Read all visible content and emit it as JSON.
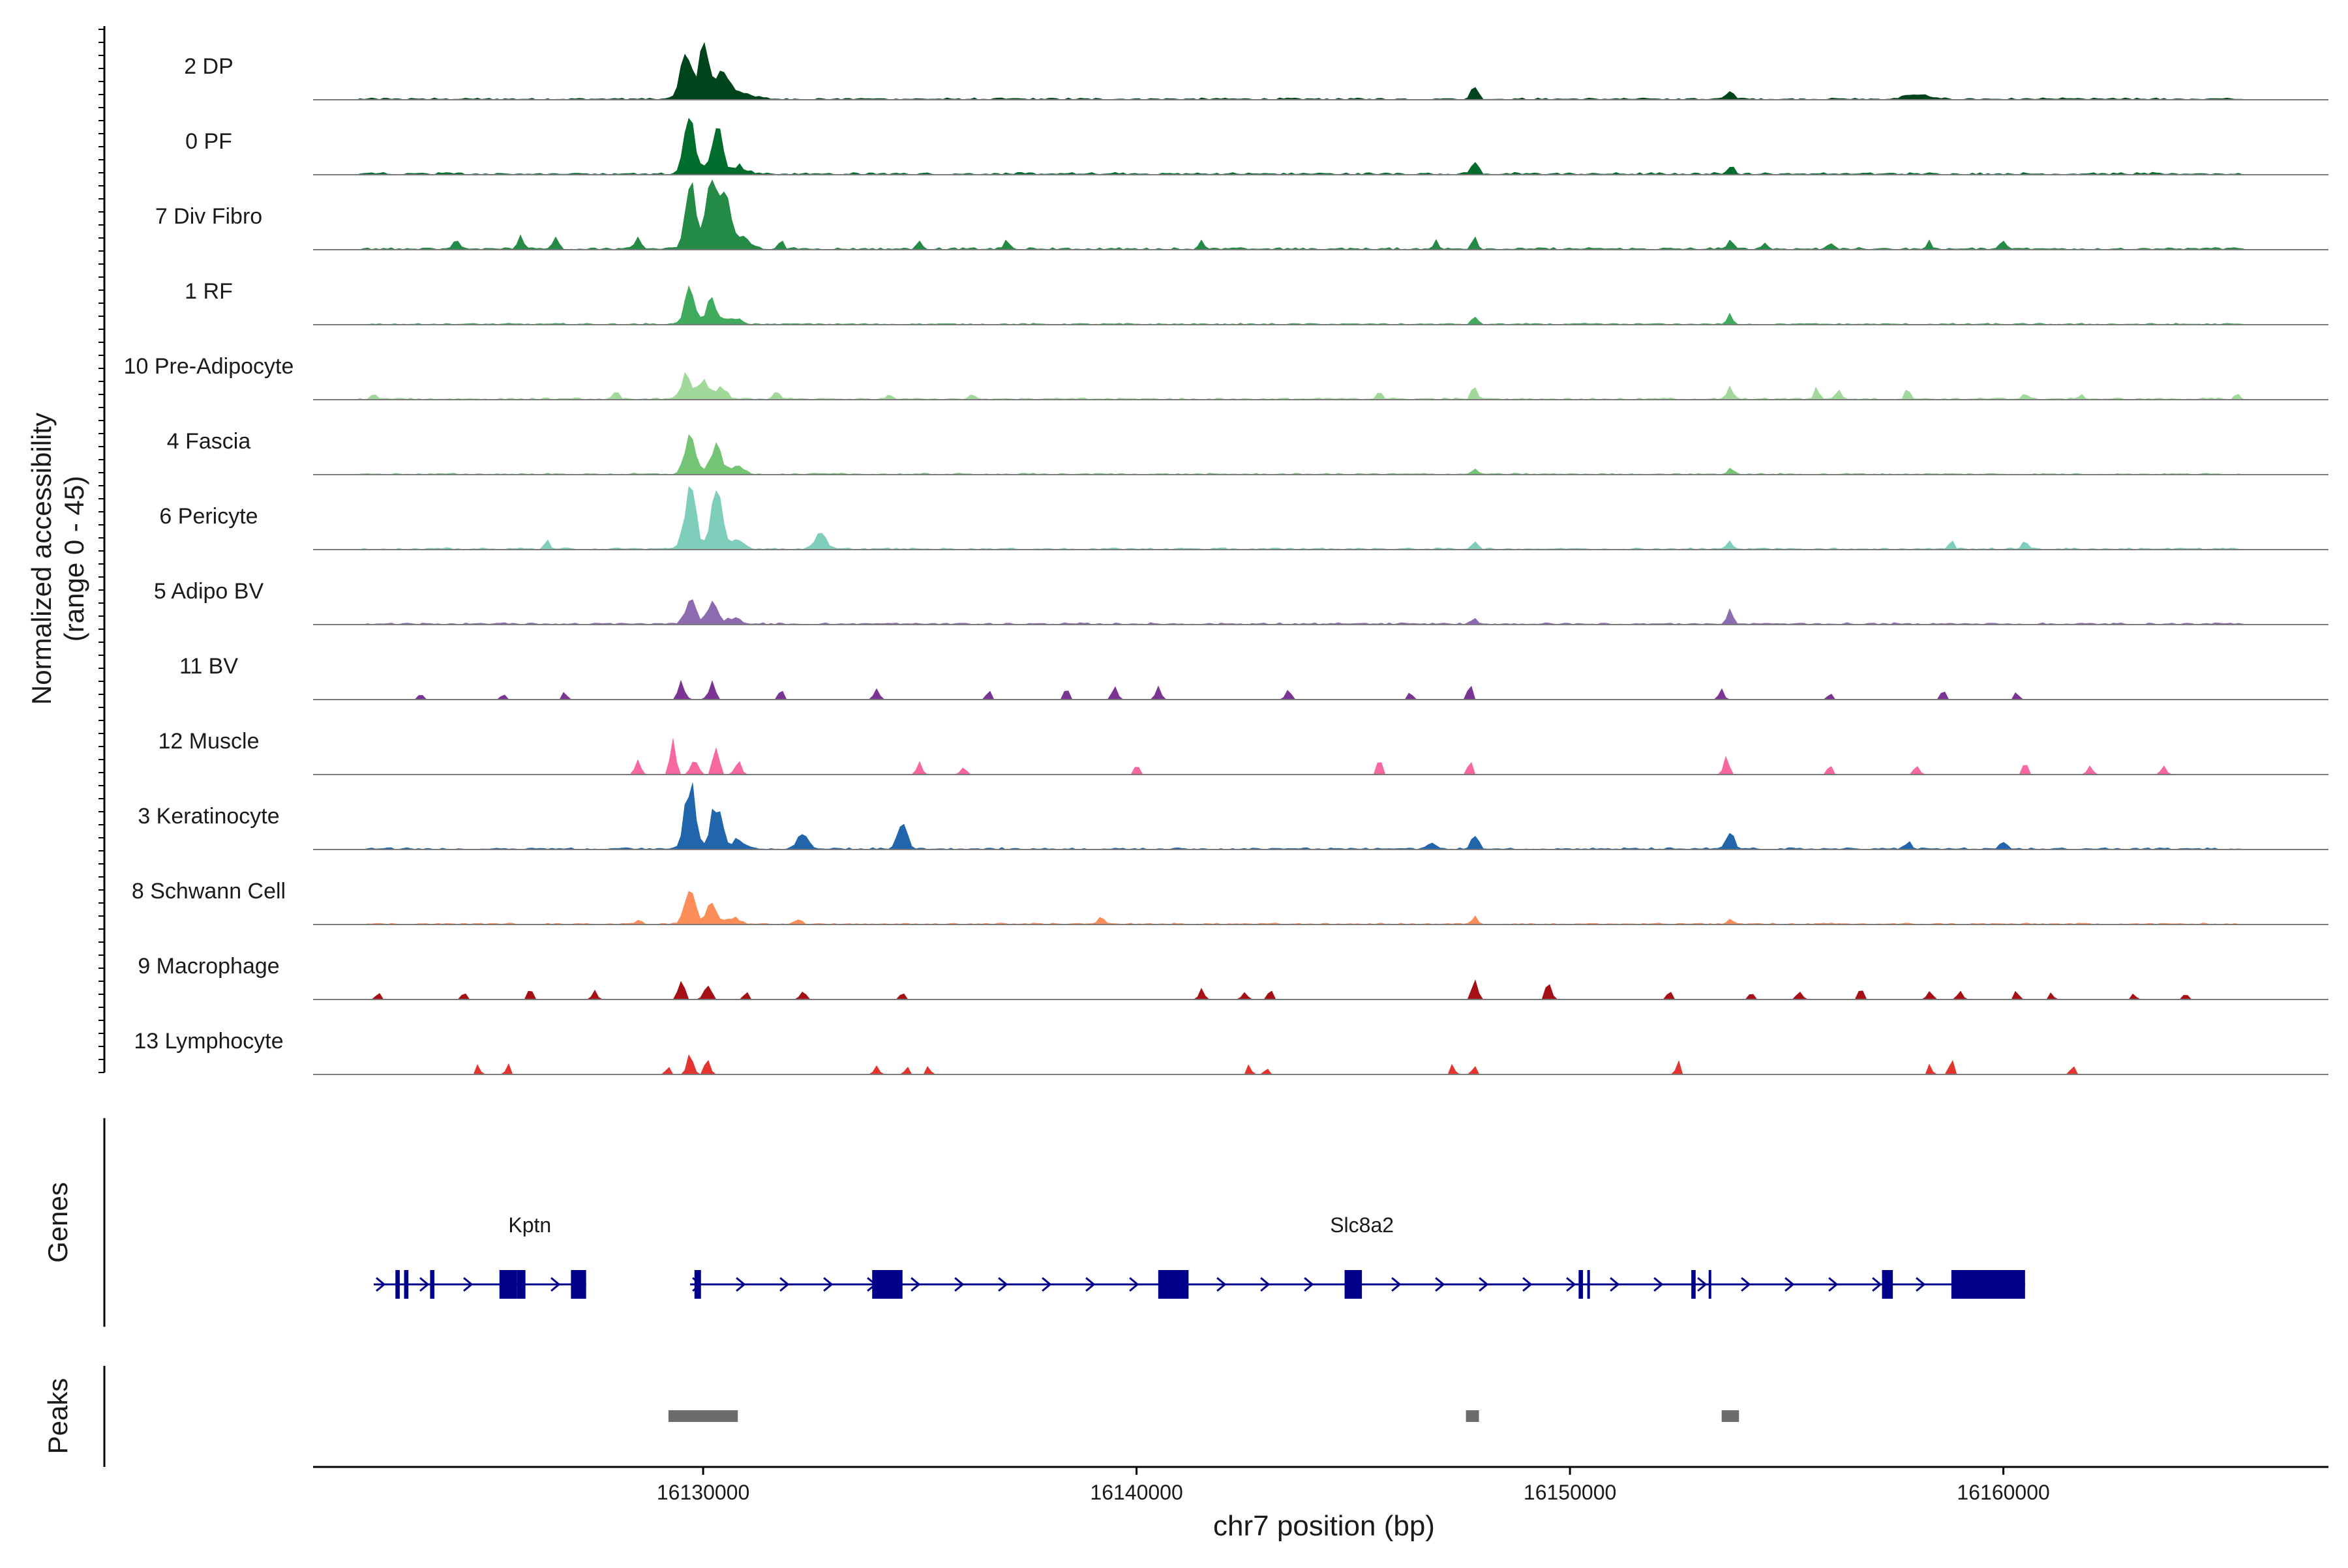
{
  "chart_data": {
    "type": "area",
    "chromosome": "chr7",
    "xlabel": "chr7 position (bp)",
    "xlim": [
      16121000,
      16167500
    ],
    "xticks": [
      16130000,
      16140000,
      16150000,
      16160000
    ],
    "xtick_labels": [
      "16130000",
      "16140000",
      "16150000",
      "16160000"
    ],
    "ylabel_line1": "Normalized accessibility",
    "ylabel_line2": "(range 0 - 45)",
    "ylim": [
      0,
      45
    ],
    "tracks": [
      {
        "name": "2 DP",
        "color": "#00441b",
        "scale": 1.0,
        "noise": 0.025,
        "sparse": false,
        "peaks": [
          [
            16129600,
            130,
            32
          ],
          [
            16130000,
            120,
            30
          ],
          [
            16130400,
            180,
            16
          ],
          [
            16130900,
            260,
            4
          ],
          [
            16147800,
            80,
            8
          ],
          [
            16153700,
            80,
            6
          ],
          [
            16158000,
            250,
            3
          ]
        ]
      },
      {
        "name": "0 PF",
        "color": "#006d2c",
        "scale": 1.0,
        "noise": 0.03,
        "sparse": false,
        "peaks": [
          [
            16129700,
            130,
            36
          ],
          [
            16130300,
            130,
            30
          ],
          [
            16130800,
            200,
            5
          ],
          [
            16147800,
            80,
            8
          ],
          [
            16153700,
            80,
            6
          ]
        ]
      },
      {
        "name": "7 Div Fibro",
        "color": "#238b45",
        "scale": 1.0,
        "noise": 0.03,
        "sparse": false,
        "peaks": [
          [
            16129700,
            120,
            43
          ],
          [
            16130150,
            120,
            38
          ],
          [
            16130500,
            150,
            33
          ],
          [
            16130900,
            200,
            6
          ],
          [
            16124300,
            60,
            6
          ],
          [
            16125800,
            60,
            9
          ],
          [
            16126600,
            60,
            8
          ],
          [
            16128500,
            60,
            8
          ],
          [
            16131800,
            60,
            6
          ],
          [
            16135000,
            60,
            6
          ],
          [
            16137000,
            60,
            5
          ],
          [
            16141500,
            60,
            6
          ],
          [
            16146900,
            60,
            5
          ],
          [
            16147800,
            60,
            9
          ],
          [
            16153700,
            60,
            7
          ],
          [
            16154500,
            60,
            4
          ],
          [
            16156000,
            60,
            5
          ],
          [
            16158300,
            60,
            4
          ],
          [
            16160000,
            60,
            5
          ]
        ]
      },
      {
        "name": "1 RF",
        "color": "#41ab5d",
        "scale": 1.0,
        "noise": 0.02,
        "sparse": false,
        "peaks": [
          [
            16129700,
            120,
            22
          ],
          [
            16130200,
            120,
            16
          ],
          [
            16130700,
            150,
            4
          ],
          [
            16147800,
            60,
            5
          ],
          [
            16153700,
            60,
            6
          ]
        ]
      },
      {
        "name": "10 Pre-Adipocyte",
        "color": "#a1d99b",
        "scale": 1.0,
        "noise": 0.025,
        "sparse": false,
        "peaks": [
          [
            16129600,
            120,
            14
          ],
          [
            16130000,
            120,
            12
          ],
          [
            16130400,
            120,
            8
          ],
          [
            16122400,
            50,
            4
          ],
          [
            16128000,
            60,
            4
          ],
          [
            16131700,
            60,
            5
          ],
          [
            16134300,
            60,
            4
          ],
          [
            16136200,
            60,
            4
          ],
          [
            16145600,
            60,
            6
          ],
          [
            16147800,
            60,
            9
          ],
          [
            16153700,
            60,
            8
          ],
          [
            16155700,
            60,
            7
          ],
          [
            16156200,
            60,
            6
          ],
          [
            16157800,
            60,
            7
          ],
          [
            16160500,
            60,
            4
          ],
          [
            16161800,
            60,
            3
          ],
          [
            16165400,
            50,
            4
          ]
        ]
      },
      {
        "name": "4 Fascia",
        "color": "#74c476",
        "scale": 1.0,
        "noise": 0.02,
        "sparse": false,
        "peaks": [
          [
            16129700,
            120,
            24
          ],
          [
            16130300,
            130,
            19
          ],
          [
            16130800,
            150,
            5
          ],
          [
            16147800,
            60,
            4
          ],
          [
            16153700,
            60,
            4
          ]
        ]
      },
      {
        "name": "6 Pericyte",
        "color": "#7fcdbb",
        "scale": 1.0,
        "noise": 0.025,
        "sparse": false,
        "peaks": [
          [
            16129700,
            130,
            38
          ],
          [
            16130300,
            130,
            34
          ],
          [
            16130800,
            150,
            6
          ],
          [
            16132700,
            120,
            11
          ],
          [
            16126400,
            60,
            5
          ],
          [
            16147800,
            60,
            6
          ],
          [
            16153700,
            60,
            6
          ],
          [
            16158800,
            60,
            5
          ],
          [
            16160500,
            60,
            6
          ]
        ]
      },
      {
        "name": "5 Adipo BV",
        "color": "#8c6bb1",
        "scale": 1.0,
        "noise": 0.025,
        "sparse": false,
        "peaks": [
          [
            16129700,
            120,
            16
          ],
          [
            16130200,
            120,
            13
          ],
          [
            16130700,
            150,
            4
          ],
          [
            16153700,
            60,
            10
          ],
          [
            16147800,
            60,
            3
          ]
        ]
      },
      {
        "name": "11 BV",
        "color": "#7a3594",
        "scale": 1.0,
        "noise": 0.0,
        "sparse": true,
        "peaks": [
          [
            16123500,
            60,
            4
          ],
          [
            16125400,
            60,
            4
          ],
          [
            16126800,
            60,
            5
          ],
          [
            16129500,
            80,
            11
          ],
          [
            16130200,
            80,
            10
          ],
          [
            16131800,
            60,
            8
          ],
          [
            16134000,
            60,
            8
          ],
          [
            16136600,
            60,
            5
          ],
          [
            16138400,
            60,
            8
          ],
          [
            16139500,
            60,
            9
          ],
          [
            16140500,
            60,
            8
          ],
          [
            16143500,
            60,
            6
          ],
          [
            16146300,
            60,
            5
          ],
          [
            16147700,
            60,
            9
          ],
          [
            16153500,
            60,
            6
          ],
          [
            16156000,
            60,
            4
          ],
          [
            16158600,
            60,
            6
          ],
          [
            16160300,
            60,
            4
          ]
        ]
      },
      {
        "name": "12 Muscle",
        "color": "#f768a1",
        "scale": 1.0,
        "noise": 0.0,
        "sparse": true,
        "peaks": [
          [
            16128500,
            70,
            9
          ],
          [
            16129300,
            70,
            22
          ],
          [
            16129800,
            80,
            11
          ],
          [
            16130300,
            80,
            14
          ],
          [
            16130800,
            80,
            8
          ],
          [
            16135000,
            60,
            8
          ],
          [
            16136000,
            60,
            5
          ],
          [
            16140000,
            60,
            6
          ],
          [
            16145600,
            60,
            10
          ],
          [
            16147700,
            60,
            8
          ],
          [
            16153600,
            60,
            12
          ],
          [
            16156000,
            60,
            5
          ],
          [
            16158000,
            60,
            6
          ],
          [
            16160500,
            60,
            7
          ],
          [
            16162000,
            60,
            6
          ],
          [
            16163700,
            60,
            5
          ]
        ]
      },
      {
        "name": "3 Keratinocyte",
        "color": "#2166ac",
        "scale": 1.0,
        "noise": 0.025,
        "sparse": false,
        "peaks": [
          [
            16129700,
            120,
            44
          ],
          [
            16130300,
            130,
            26
          ],
          [
            16130800,
            150,
            6
          ],
          [
            16132300,
            120,
            10
          ],
          [
            16134600,
            110,
            16
          ],
          [
            16146800,
            80,
            5
          ],
          [
            16147800,
            80,
            8
          ],
          [
            16153700,
            80,
            11
          ],
          [
            16157800,
            80,
            4
          ],
          [
            16160000,
            80,
            3
          ]
        ]
      },
      {
        "name": "8 Schwann Cell",
        "color": "#fc8d59",
        "scale": 1.0,
        "noise": 0.02,
        "sparse": false,
        "peaks": [
          [
            16129700,
            120,
            18
          ],
          [
            16130200,
            120,
            13
          ],
          [
            16130700,
            150,
            4
          ],
          [
            16128500,
            60,
            3
          ],
          [
            16132200,
            60,
            4
          ],
          [
            16139200,
            60,
            5
          ],
          [
            16147800,
            60,
            5
          ],
          [
            16153700,
            60,
            4
          ]
        ]
      },
      {
        "name": "9 Macrophage",
        "color": "#a50f15",
        "scale": 1.0,
        "noise": 0.0,
        "sparse": true,
        "peaks": [
          [
            16122500,
            60,
            4
          ],
          [
            16124500,
            60,
            5
          ],
          [
            16126000,
            60,
            7
          ],
          [
            16127500,
            60,
            5
          ],
          [
            16129500,
            80,
            13
          ],
          [
            16130100,
            80,
            11
          ],
          [
            16131000,
            60,
            5
          ],
          [
            16132300,
            60,
            6
          ],
          [
            16134600,
            60,
            4
          ],
          [
            16141500,
            60,
            6
          ],
          [
            16142500,
            60,
            5
          ],
          [
            16143100,
            60,
            6
          ],
          [
            16147800,
            70,
            13
          ],
          [
            16149500,
            70,
            12
          ],
          [
            16152300,
            60,
            5
          ],
          [
            16154200,
            60,
            5
          ],
          [
            16155300,
            60,
            6
          ],
          [
            16156700,
            60,
            7
          ],
          [
            16158300,
            60,
            6
          ],
          [
            16159000,
            60,
            7
          ],
          [
            16160300,
            60,
            6
          ],
          [
            16161100,
            60,
            4
          ],
          [
            16163000,
            60,
            4
          ],
          [
            16164200,
            60,
            4
          ]
        ]
      },
      {
        "name": "13 Lymphocyte",
        "color": "#e3342f",
        "scale": 1.0,
        "noise": 0.0,
        "sparse": true,
        "peaks": [
          [
            16124800,
            50,
            8
          ],
          [
            16125500,
            50,
            6
          ],
          [
            16129200,
            60,
            5
          ],
          [
            16129700,
            70,
            15
          ],
          [
            16130100,
            60,
            11
          ],
          [
            16134000,
            50,
            7
          ],
          [
            16134700,
            50,
            5
          ],
          [
            16135200,
            50,
            5
          ],
          [
            16142600,
            50,
            6
          ],
          [
            16143000,
            50,
            5
          ],
          [
            16147300,
            50,
            6
          ],
          [
            16147800,
            50,
            6
          ],
          [
            16152500,
            50,
            10
          ],
          [
            16158300,
            50,
            7
          ],
          [
            16158800,
            50,
            10
          ],
          [
            16161600,
            50,
            5
          ]
        ]
      }
    ],
    "genes_label": "Genes",
    "genes": [
      {
        "name": "Kptn",
        "start": 16122400,
        "end": 16127300,
        "strand": "+",
        "label_pos": 16126000,
        "exons": [
          [
            16122900,
            16123000
          ],
          [
            16123100,
            16123200
          ],
          [
            16123700,
            16123800
          ],
          [
            16125300,
            16125700
          ],
          [
            16125700,
            16125900
          ],
          [
            16126950,
            16127300
          ]
        ]
      },
      {
        "name": "Slc8a2",
        "start": 16129700,
        "end": 16160500,
        "strand": "+",
        "label_pos": 16145200,
        "exons": [
          [
            16129800,
            16129950
          ],
          [
            16133900,
            16134600
          ],
          [
            16140500,
            16141200
          ],
          [
            16144800,
            16145200
          ],
          [
            16150200,
            16150300
          ],
          [
            16150400,
            16150450
          ],
          [
            16152800,
            16152900
          ],
          [
            16153200,
            16153250
          ],
          [
            16157200,
            16157450
          ],
          [
            16158800,
            16160500
          ]
        ]
      }
    ],
    "peaks_label": "Peaks",
    "peak_regions": [
      [
        16129200,
        16130800
      ],
      [
        16147600,
        16147900
      ],
      [
        16153500,
        16153900
      ]
    ]
  }
}
